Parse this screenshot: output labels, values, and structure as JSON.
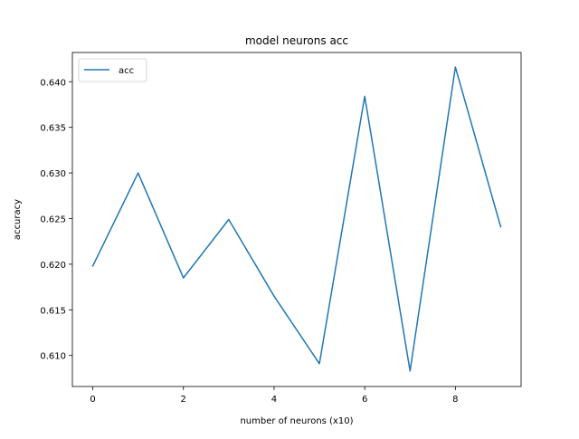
{
  "chart_data": {
    "type": "line",
    "title": "model neurons acc",
    "xlabel": "number of neurons (x10)",
    "ylabel": "accuracy",
    "x": [
      0,
      1,
      2,
      3,
      4,
      5,
      6,
      7,
      8,
      9
    ],
    "series": [
      {
        "name": "acc",
        "color": "#1f77b4",
        "values": [
          0.6198,
          0.63,
          0.6185,
          0.6249,
          0.6165,
          0.6091,
          0.6384,
          0.6083,
          0.6416,
          0.6241
        ]
      }
    ],
    "xlim": [
      -0.45,
      9.45
    ],
    "ylim": [
      0.6066,
      0.6432
    ],
    "xticks": [
      0,
      2,
      4,
      6,
      8
    ],
    "xtick_labels": [
      "0",
      "2",
      "4",
      "6",
      "8"
    ],
    "yticks": [
      0.61,
      0.615,
      0.62,
      0.625,
      0.63,
      0.635,
      0.64
    ],
    "ytick_labels": [
      "0.610",
      "0.615",
      "0.620",
      "0.625",
      "0.630",
      "0.635",
      "0.640"
    ],
    "grid": false,
    "legend_position": "top-left"
  }
}
